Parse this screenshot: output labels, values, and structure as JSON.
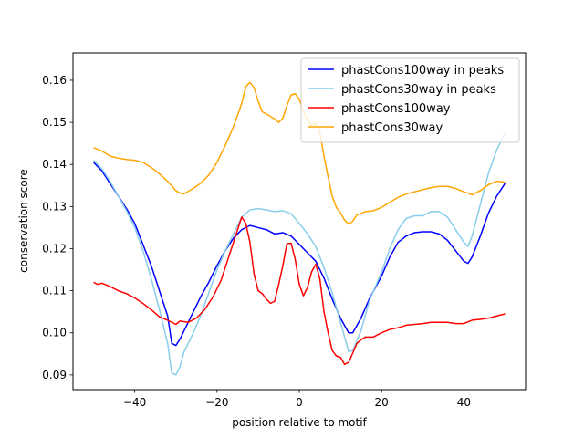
{
  "chart_data": {
    "type": "line",
    "xlabel": "position relative to motif",
    "ylabel": "conservation score",
    "xlim": [
      -55,
      55
    ],
    "ylim": [
      0.0865,
      0.1665
    ],
    "xticks": [
      -40,
      -20,
      0,
      20,
      40
    ],
    "yticks": [
      0.09,
      0.1,
      0.11,
      0.12,
      0.13,
      0.14,
      0.15,
      0.16
    ],
    "grid": false,
    "legend_position": "top-right",
    "series": [
      {
        "name": "phastCons100way in peaks",
        "color": "#0000ff",
        "points": [
          [
            -50,
            0.1405
          ],
          [
            -48,
            0.1385
          ],
          [
            -46,
            0.1355
          ],
          [
            -44,
            0.1325
          ],
          [
            -42,
            0.1295
          ],
          [
            -40,
            0.126
          ],
          [
            -38,
            0.121
          ],
          [
            -36,
            0.116
          ],
          [
            -34,
            0.11
          ],
          [
            -32,
            0.104
          ],
          [
            -31,
            0.0975
          ],
          [
            -30,
            0.097
          ],
          [
            -29,
            0.0985
          ],
          [
            -28,
            0.1005
          ],
          [
            -26,
            0.1045
          ],
          [
            -24,
            0.1085
          ],
          [
            -22,
            0.112
          ],
          [
            -20,
            0.116
          ],
          [
            -18,
            0.1195
          ],
          [
            -16,
            0.1225
          ],
          [
            -14,
            0.1245
          ],
          [
            -12,
            0.1255
          ],
          [
            -10,
            0.125
          ],
          [
            -8,
            0.1245
          ],
          [
            -6,
            0.1235
          ],
          [
            -4,
            0.1238
          ],
          [
            -2,
            0.123
          ],
          [
            0,
            0.121
          ],
          [
            2,
            0.119
          ],
          [
            4,
            0.117
          ],
          [
            6,
            0.113
          ],
          [
            8,
            0.108
          ],
          [
            10,
            0.1035
          ],
          [
            12,
            0.1
          ],
          [
            13,
            0.1
          ],
          [
            15,
            0.1035
          ],
          [
            17,
            0.108
          ],
          [
            20,
            0.1135
          ],
          [
            22,
            0.118
          ],
          [
            24,
            0.1215
          ],
          [
            26,
            0.123
          ],
          [
            28,
            0.1238
          ],
          [
            30,
            0.124
          ],
          [
            32,
            0.124
          ],
          [
            34,
            0.1235
          ],
          [
            36,
            0.122
          ],
          [
            38,
            0.1195
          ],
          [
            40,
            0.117
          ],
          [
            41,
            0.1165
          ],
          [
            42,
            0.118
          ],
          [
            44,
            0.123
          ],
          [
            46,
            0.1285
          ],
          [
            48,
            0.1325
          ],
          [
            50,
            0.1355
          ]
        ]
      },
      {
        "name": "phastCons30way in peaks",
        "color": "#87ceeb",
        "points": [
          [
            -50,
            0.141
          ],
          [
            -48,
            0.139
          ],
          [
            -46,
            0.136
          ],
          [
            -44,
            0.1325
          ],
          [
            -42,
            0.129
          ],
          [
            -40,
            0.125
          ],
          [
            -38,
            0.1195
          ],
          [
            -36,
            0.113
          ],
          [
            -34,
            0.1055
          ],
          [
            -32,
            0.0975
          ],
          [
            -31,
            0.0905
          ],
          [
            -30,
            0.09
          ],
          [
            -29,
            0.092
          ],
          [
            -28,
            0.0955
          ],
          [
            -26,
            0.0995
          ],
          [
            -24,
            0.104
          ],
          [
            -22,
            0.1095
          ],
          [
            -20,
            0.115
          ],
          [
            -18,
            0.1195
          ],
          [
            -16,
            0.1235
          ],
          [
            -14,
            0.1275
          ],
          [
            -12,
            0.1292
          ],
          [
            -10,
            0.1295
          ],
          [
            -8,
            0.1292
          ],
          [
            -6,
            0.1288
          ],
          [
            -4,
            0.129
          ],
          [
            -2,
            0.1283
          ],
          [
            0,
            0.126
          ],
          [
            2,
            0.1235
          ],
          [
            4,
            0.1205
          ],
          [
            6,
            0.1155
          ],
          [
            8,
            0.1095
          ],
          [
            10,
            0.1025
          ],
          [
            12,
            0.0955
          ],
          [
            13,
            0.0958
          ],
          [
            15,
            0.1005
          ],
          [
            17,
            0.1075
          ],
          [
            20,
            0.1145
          ],
          [
            22,
            0.12
          ],
          [
            24,
            0.1245
          ],
          [
            26,
            0.1272
          ],
          [
            28,
            0.1278
          ],
          [
            30,
            0.1278
          ],
          [
            32,
            0.1288
          ],
          [
            34,
            0.1288
          ],
          [
            36,
            0.1275
          ],
          [
            38,
            0.1245
          ],
          [
            40,
            0.1215
          ],
          [
            41,
            0.1205
          ],
          [
            42,
            0.123
          ],
          [
            44,
            0.1305
          ],
          [
            46,
            0.138
          ],
          [
            48,
            0.1435
          ],
          [
            50,
            0.1475
          ]
        ]
      },
      {
        "name": "phastCons100way",
        "color": "#ff0000",
        "points": [
          [
            -50,
            0.112
          ],
          [
            -49,
            0.1115
          ],
          [
            -48,
            0.1118
          ],
          [
            -46,
            0.111
          ],
          [
            -44,
            0.11
          ],
          [
            -42,
            0.1093
          ],
          [
            -40,
            0.1083
          ],
          [
            -38,
            0.107
          ],
          [
            -36,
            0.1055
          ],
          [
            -34,
            0.1038
          ],
          [
            -32,
            0.103
          ],
          [
            -30,
            0.102
          ],
          [
            -29,
            0.1028
          ],
          [
            -27,
            0.1025
          ],
          [
            -25,
            0.1035
          ],
          [
            -23,
            0.1055
          ],
          [
            -21,
            0.1085
          ],
          [
            -19,
            0.1125
          ],
          [
            -17,
            0.1185
          ],
          [
            -15,
            0.1245
          ],
          [
            -14,
            0.1275
          ],
          [
            -13,
            0.126
          ],
          [
            -12,
            0.1215
          ],
          [
            -11,
            0.114
          ],
          [
            -10,
            0.11
          ],
          [
            -9,
            0.1093
          ],
          [
            -8,
            0.108
          ],
          [
            -7,
            0.107
          ],
          [
            -6,
            0.1075
          ],
          [
            -5,
            0.1115
          ],
          [
            -4,
            0.116
          ],
          [
            -3,
            0.1212
          ],
          [
            -2,
            0.1213
          ],
          [
            -1,
            0.1175
          ],
          [
            0,
            0.1115
          ],
          [
            1,
            0.1088
          ],
          [
            2,
            0.1108
          ],
          [
            3,
            0.1145
          ],
          [
            4,
            0.1163
          ],
          [
            5,
            0.1128
          ],
          [
            6,
            0.105
          ],
          [
            7,
            0.1
          ],
          [
            8,
            0.0958
          ],
          [
            9,
            0.0945
          ],
          [
            10,
            0.0942
          ],
          [
            11,
            0.0925
          ],
          [
            12,
            0.093
          ],
          [
            13,
            0.0952
          ],
          [
            14,
            0.0975
          ],
          [
            15,
            0.0983
          ],
          [
            16,
            0.099
          ],
          [
            18,
            0.099
          ],
          [
            20,
            0.1
          ],
          [
            22,
            0.1008
          ],
          [
            24,
            0.1012
          ],
          [
            26,
            0.1018
          ],
          [
            28,
            0.102
          ],
          [
            30,
            0.1022
          ],
          [
            32,
            0.1025
          ],
          [
            34,
            0.1025
          ],
          [
            36,
            0.1025
          ],
          [
            38,
            0.1022
          ],
          [
            40,
            0.1022
          ],
          [
            42,
            0.103
          ],
          [
            44,
            0.1032
          ],
          [
            46,
            0.1035
          ],
          [
            48,
            0.104
          ],
          [
            50,
            0.1045
          ]
        ]
      },
      {
        "name": "phastCons30way",
        "color": "#ffa500",
        "points": [
          [
            -50,
            0.144
          ],
          [
            -48,
            0.1432
          ],
          [
            -46,
            0.142
          ],
          [
            -44,
            0.1415
          ],
          [
            -42,
            0.1412
          ],
          [
            -40,
            0.141
          ],
          [
            -38,
            0.1405
          ],
          [
            -36,
            0.1393
          ],
          [
            -34,
            0.1378
          ],
          [
            -32,
            0.136
          ],
          [
            -30,
            0.1338
          ],
          [
            -29,
            0.1332
          ],
          [
            -28,
            0.133
          ],
          [
            -26,
            0.1342
          ],
          [
            -24,
            0.1355
          ],
          [
            -22,
            0.1375
          ],
          [
            -20,
            0.1405
          ],
          [
            -18,
            0.1445
          ],
          [
            -16,
            0.149
          ],
          [
            -14,
            0.1545
          ],
          [
            -13,
            0.1585
          ],
          [
            -12,
            0.1595
          ],
          [
            -11,
            0.1583
          ],
          [
            -10,
            0.155
          ],
          [
            -9,
            0.1525
          ],
          [
            -8,
            0.152
          ],
          [
            -6,
            0.1508
          ],
          [
            -5,
            0.15
          ],
          [
            -4,
            0.151
          ],
          [
            -3,
            0.154
          ],
          [
            -2,
            0.1565
          ],
          [
            -1,
            0.1568
          ],
          [
            0,
            0.1555
          ],
          [
            1,
            0.1525
          ],
          [
            2,
            0.1505
          ],
          [
            3,
            0.1493
          ],
          [
            4,
            0.1498
          ],
          [
            5,
            0.1475
          ],
          [
            6,
            0.142
          ],
          [
            7,
            0.137
          ],
          [
            8,
            0.1325
          ],
          [
            9,
            0.1298
          ],
          [
            10,
            0.1285
          ],
          [
            11,
            0.1268
          ],
          [
            12,
            0.1258
          ],
          [
            13,
            0.1265
          ],
          [
            14,
            0.128
          ],
          [
            16,
            0.1288
          ],
          [
            18,
            0.129
          ],
          [
            20,
            0.1298
          ],
          [
            22,
            0.131
          ],
          [
            24,
            0.1322
          ],
          [
            26,
            0.133
          ],
          [
            28,
            0.1335
          ],
          [
            30,
            0.134
          ],
          [
            32,
            0.1345
          ],
          [
            34,
            0.1348
          ],
          [
            36,
            0.1348
          ],
          [
            38,
            0.1343
          ],
          [
            40,
            0.1335
          ],
          [
            42,
            0.1328
          ],
          [
            44,
            0.1338
          ],
          [
            46,
            0.1352
          ],
          [
            48,
            0.136
          ],
          [
            50,
            0.1358
          ]
        ]
      }
    ]
  }
}
